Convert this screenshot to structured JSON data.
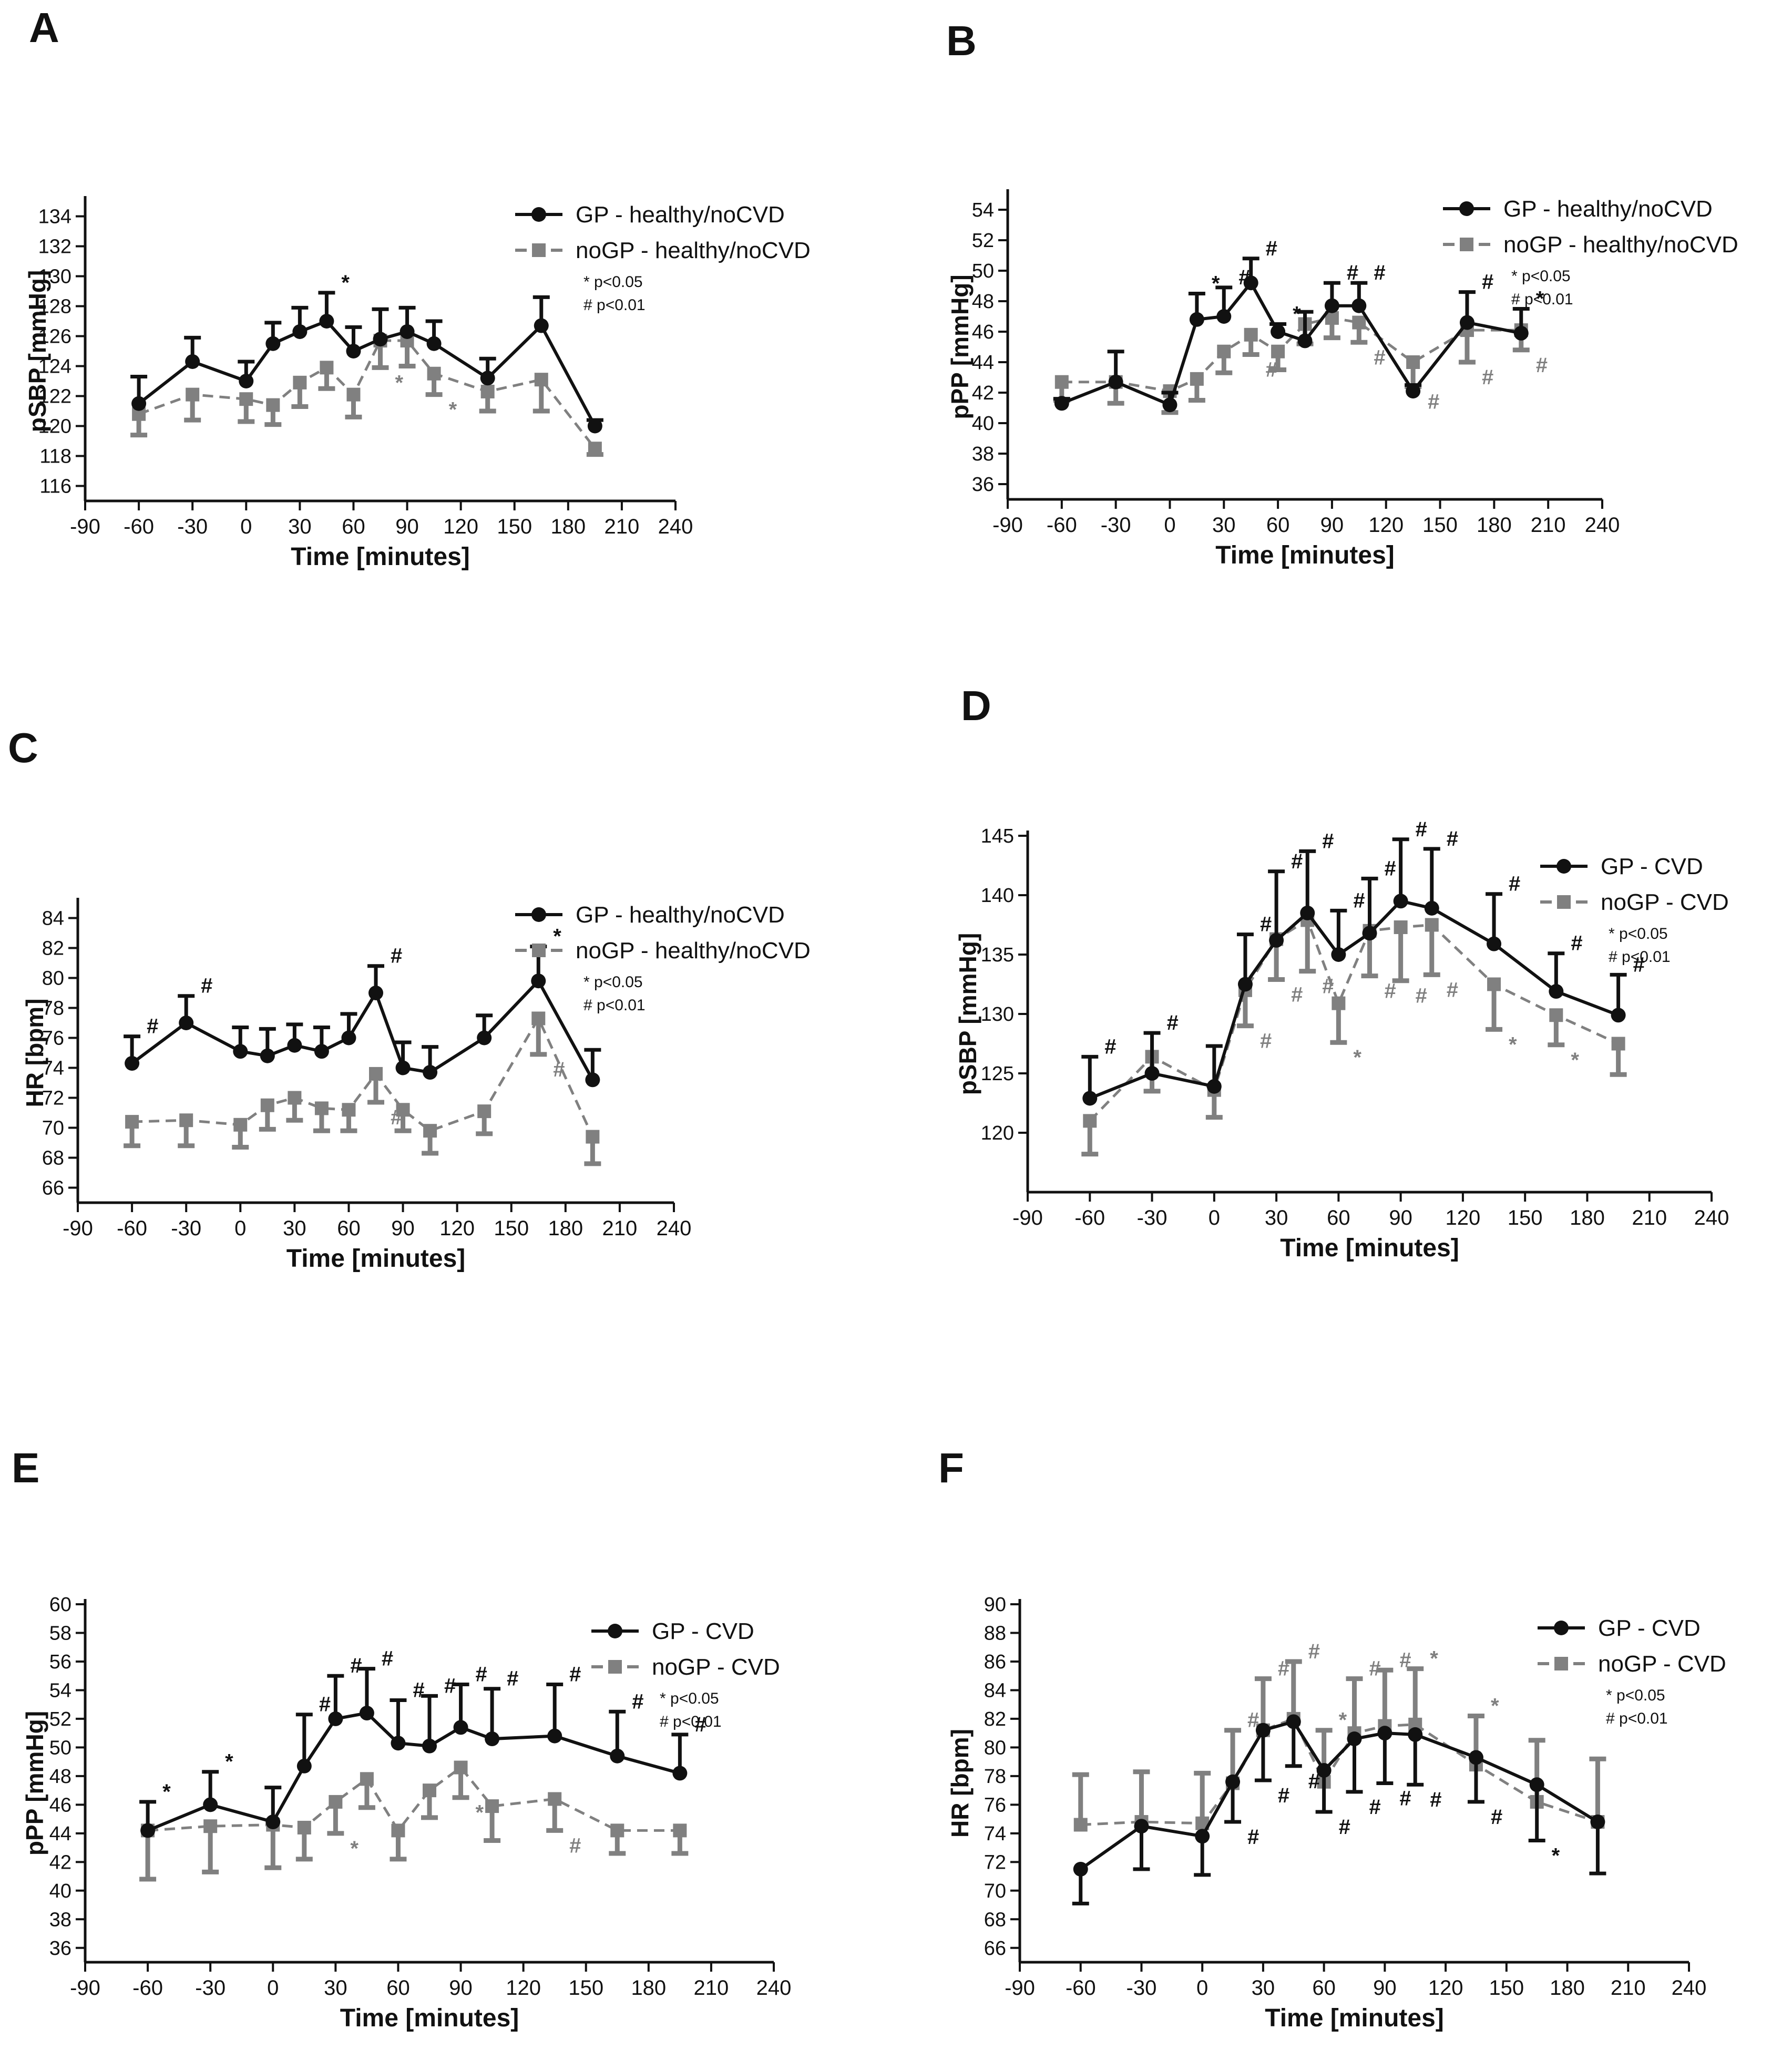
{
  "figure": {
    "series_colors": {
      "gp": "#111111",
      "nogp": "#808080"
    }
  },
  "chart_data": [
    {
      "panel": "A",
      "type": "line",
      "xlabel": "Time [minutes]",
      "ylabel": "pSBP [mmHg]",
      "xlim": [
        -90,
        240
      ],
      "xticks": [
        -90,
        -60,
        -30,
        0,
        30,
        60,
        90,
        120,
        150,
        180,
        210,
        240
      ],
      "ylim": [
        115,
        135
      ],
      "yticks": [
        116,
        118,
        120,
        122,
        124,
        126,
        128,
        130,
        132,
        134
      ],
      "legend": [
        "GP - healthy/noCVD",
        "noGP - healthy/noCVD"
      ],
      "legend_position": "top-right",
      "sig_note": [
        "* p<0.05",
        "# p<0.01"
      ],
      "x": [
        -60,
        -30,
        0,
        15,
        30,
        45,
        60,
        75,
        90,
        105,
        135,
        165,
        195
      ],
      "series": [
        {
          "name": "GP - healthy/noCVD",
          "values": [
            121.5,
            124.3,
            123.0,
            125.5,
            126.3,
            127.0,
            125.0,
            125.8,
            126.3,
            125.5,
            123.2,
            126.7,
            120.0
          ],
          "err": [
            1.8,
            1.6,
            1.3,
            1.4,
            1.6,
            1.9,
            1.6,
            2.0,
            1.6,
            1.5,
            1.3,
            1.9,
            0.4
          ],
          "err_dir": "up",
          "marks": [
            {
              "x": 45,
              "label": "*"
            }
          ]
        },
        {
          "name": "noGP - healthy/noCVD",
          "values": [
            120.8,
            122.1,
            121.8,
            121.4,
            122.9,
            123.9,
            122.1,
            125.7,
            125.7,
            123.5,
            122.3,
            123.1,
            118.5
          ],
          "err": [
            1.4,
            1.7,
            1.5,
            1.3,
            1.6,
            1.4,
            1.5,
            1.8,
            1.7,
            1.4,
            1.3,
            2.1,
            0.4
          ],
          "err_dir": "down",
          "marks": [
            {
              "x": 75,
              "label": "*"
            },
            {
              "x": 105,
              "label": "*"
            }
          ]
        }
      ]
    },
    {
      "panel": "B",
      "type": "line",
      "xlabel": "Time [minutes]",
      "ylabel": "pPP [mmHg]",
      "xlim": [
        -90,
        240
      ],
      "xticks": [
        -90,
        -60,
        -30,
        0,
        30,
        60,
        90,
        120,
        150,
        180,
        210,
        240
      ],
      "ylim": [
        35,
        55
      ],
      "yticks": [
        36,
        38,
        40,
        42,
        44,
        46,
        48,
        50,
        52,
        54
      ],
      "legend": [
        "GP - healthy/noCVD",
        "noGP - healthy/noCVD"
      ],
      "legend_position": "top-right",
      "sig_note": [
        "* p<0.05",
        "# p<0.01"
      ],
      "x": [
        -60,
        -30,
        0,
        15,
        30,
        45,
        60,
        75,
        90,
        105,
        135,
        165,
        195
      ],
      "series": [
        {
          "name": "GP - healthy/noCVD",
          "values": [
            41.3,
            42.7,
            41.2,
            46.8,
            47.0,
            49.2,
            46.0,
            45.4,
            47.7,
            47.7,
            42.1,
            46.6,
            45.9
          ],
          "err": [
            0.3,
            2.0,
            0.8,
            1.7,
            1.9,
            1.6,
            0.5,
            1.9,
            1.5,
            1.5,
            0.4,
            2.0,
            1.6
          ],
          "err_dir": "up",
          "marks": [
            {
              "x": 15,
              "label": "*"
            },
            {
              "x": 30,
              "label": "#"
            },
            {
              "x": 45,
              "label": "#"
            },
            {
              "x": 60,
              "label": "*"
            },
            {
              "x": 90,
              "label": "#"
            },
            {
              "x": 105,
              "label": "#"
            },
            {
              "x": 165,
              "label": "#"
            },
            {
              "x": 195,
              "label": "*"
            }
          ]
        },
        {
          "name": "noGP - healthy/noCVD",
          "values": [
            42.7,
            42.7,
            42.1,
            42.9,
            44.7,
            45.8,
            44.7,
            46.5,
            46.9,
            46.6,
            44.0,
            46.1,
            46.1
          ],
          "err": [
            1.2,
            1.4,
            1.4,
            1.4,
            1.4,
            1.3,
            1.2,
            1.3,
            1.3,
            1.3,
            1.6,
            2.1,
            1.3
          ],
          "err_dir": "down",
          "marks": [
            {
              "x": 45,
              "label": "#"
            },
            {
              "x": 105,
              "label": "#"
            },
            {
              "x": 135,
              "label": "#"
            },
            {
              "x": 165,
              "label": "#"
            },
            {
              "x": 195,
              "label": "#"
            }
          ]
        }
      ]
    },
    {
      "panel": "C",
      "type": "line",
      "xlabel": "Time [minutes]",
      "ylabel": "HR  [bpm]",
      "xlim": [
        -90,
        240
      ],
      "xticks": [
        -90,
        -60,
        -30,
        0,
        30,
        60,
        90,
        120,
        150,
        180,
        210,
        240
      ],
      "ylim": [
        65,
        85
      ],
      "yticks": [
        66,
        68,
        70,
        72,
        74,
        76,
        78,
        80,
        82,
        84
      ],
      "legend": [
        "GP - healthy/noCVD",
        "noGP - healthy/noCVD"
      ],
      "legend_position": "top-right",
      "sig_note": [
        "* p<0.05",
        "# p<0.01"
      ],
      "x": [
        -60,
        -30,
        0,
        15,
        30,
        45,
        60,
        75,
        90,
        105,
        135,
        165,
        195
      ],
      "series": [
        {
          "name": "GP - healthy/noCVD",
          "values": [
            74.3,
            77.0,
            75.1,
            74.8,
            75.5,
            75.1,
            76.0,
            79.0,
            74.0,
            73.7,
            76.0,
            79.8,
            73.2
          ],
          "err": [
            1.8,
            1.8,
            1.6,
            1.8,
            1.4,
            1.6,
            1.6,
            1.8,
            1.7,
            1.7,
            1.5,
            2.3,
            2.0
          ],
          "err_dir": "up",
          "marks": [
            {
              "x": -60,
              "label": "#"
            },
            {
              "x": -30,
              "label": "#"
            },
            {
              "x": 75,
              "label": "#"
            },
            {
              "x": 165,
              "label": "*"
            }
          ]
        },
        {
          "name": "noGP - healthy/noCVD",
          "values": [
            70.4,
            70.5,
            70.2,
            71.5,
            72.0,
            71.3,
            71.2,
            73.6,
            71.2,
            69.8,
            71.1,
            77.3,
            69.4
          ],
          "err": [
            1.6,
            1.7,
            1.5,
            1.6,
            1.5,
            1.5,
            1.4,
            1.9,
            1.4,
            1.5,
            1.5,
            2.4,
            1.8
          ],
          "err_dir": "down",
          "marks": [
            {
              "x": 75,
              "label": "#"
            },
            {
              "x": 165,
              "label": "#"
            }
          ]
        }
      ]
    },
    {
      "panel": "D",
      "type": "line",
      "xlabel": "Time [minutes]",
      "ylabel": "pSBP [mmHg]",
      "xlim": [
        -90,
        240
      ],
      "xticks": [
        -90,
        -60,
        -30,
        0,
        30,
        60,
        90,
        120,
        150,
        180,
        210,
        240
      ],
      "ylim": [
        115,
        145
      ],
      "yticks": [
        120,
        125,
        130,
        135,
        140,
        145
      ],
      "legend": [
        "GP - CVD",
        "noGP - CVD"
      ],
      "legend_position": "top-right",
      "sig_note": [
        "* p<0.05",
        "# p<0.01"
      ],
      "x": [
        -60,
        -30,
        0,
        15,
        30,
        45,
        60,
        75,
        90,
        105,
        135,
        165,
        195
      ],
      "series": [
        {
          "name": "GP - CVD",
          "values": [
            122.9,
            125.0,
            123.9,
            132.5,
            136.2,
            138.5,
            135.0,
            136.8,
            139.5,
            138.9,
            135.9,
            131.9,
            129.9
          ],
          "err": [
            3.5,
            3.4,
            3.4,
            4.2,
            5.8,
            5.2,
            3.7,
            4.6,
            5.2,
            5.0,
            4.2,
            3.2,
            3.4
          ],
          "err_dir": "up",
          "marks": [
            {
              "x": -60,
              "label": "#"
            },
            {
              "x": -30,
              "label": "#"
            },
            {
              "x": 15,
              "label": "#"
            },
            {
              "x": 30,
              "label": "#"
            },
            {
              "x": 45,
              "label": "#"
            },
            {
              "x": 60,
              "label": "#"
            },
            {
              "x": 75,
              "label": "#"
            },
            {
              "x": 90,
              "label": "#"
            },
            {
              "x": 105,
              "label": "#"
            },
            {
              "x": 135,
              "label": "#"
            },
            {
              "x": 165,
              "label": "#"
            },
            {
              "x": 195,
              "label": "#"
            }
          ]
        },
        {
          "name": "noGP - CVD",
          "values": [
            121.0,
            126.4,
            123.6,
            132.0,
            136.3,
            137.9,
            130.9,
            137.0,
            137.3,
            137.5,
            132.5,
            129.9,
            127.5
          ],
          "err": [
            2.8,
            2.9,
            2.3,
            3.0,
            3.4,
            4.3,
            3.3,
            3.8,
            4.5,
            4.2,
            3.8,
            2.5,
            2.6
          ],
          "err_dir": "down",
          "marks": [
            {
              "x": 15,
              "label": "#"
            },
            {
              "x": 30,
              "label": "#"
            },
            {
              "x": 45,
              "label": "#"
            },
            {
              "x": 60,
              "label": "*"
            },
            {
              "x": 75,
              "label": "#"
            },
            {
              "x": 90,
              "label": "#"
            },
            {
              "x": 105,
              "label": "#"
            },
            {
              "x": 135,
              "label": "*"
            },
            {
              "x": 165,
              "label": "*"
            }
          ]
        }
      ]
    },
    {
      "panel": "E",
      "type": "line",
      "xlabel": "Time [minutes]",
      "ylabel": "pPP [mmHg]",
      "xlim": [
        -90,
        240
      ],
      "xticks": [
        -90,
        -60,
        -30,
        0,
        30,
        60,
        90,
        120,
        150,
        180,
        210,
        240
      ],
      "ylim": [
        35,
        60
      ],
      "yticks": [
        36,
        38,
        40,
        42,
        44,
        46,
        48,
        50,
        52,
        54,
        56,
        58,
        60
      ],
      "legend": [
        "GP - CVD",
        "noGP - CVD"
      ],
      "legend_position": "top-right",
      "sig_note": [
        "* p<0.05",
        "# p<0.01"
      ],
      "x": [
        -60,
        -30,
        0,
        15,
        30,
        45,
        60,
        75,
        90,
        105,
        135,
        165,
        195
      ],
      "series": [
        {
          "name": "GP - CVD",
          "values": [
            44.2,
            46.0,
            44.8,
            48.7,
            52.0,
            52.4,
            50.3,
            50.1,
            51.4,
            50.6,
            50.8,
            49.4,
            48.2
          ],
          "err": [
            2.0,
            2.3,
            2.4,
            3.6,
            3.0,
            3.1,
            3.0,
            3.5,
            3.0,
            3.5,
            3.6,
            3.1,
            2.7
          ],
          "err_dir": "up",
          "marks": [
            {
              "x": -60,
              "label": "*"
            },
            {
              "x": -30,
              "label": "*"
            },
            {
              "x": 15,
              "label": "#"
            },
            {
              "x": 30,
              "label": "#"
            },
            {
              "x": 45,
              "label": "#"
            },
            {
              "x": 60,
              "label": "#"
            },
            {
              "x": 75,
              "label": "#"
            },
            {
              "x": 90,
              "label": "#"
            },
            {
              "x": 105,
              "label": "#"
            },
            {
              "x": 135,
              "label": "#"
            },
            {
              "x": 165,
              "label": "#"
            },
            {
              "x": 195,
              "label": "#"
            }
          ]
        },
        {
          "name": "noGP - CVD",
          "values": [
            44.2,
            44.5,
            44.6,
            44.4,
            46.2,
            47.8,
            44.2,
            47.0,
            48.6,
            45.9,
            46.4,
            44.2,
            44.2
          ],
          "err": [
            3.4,
            3.2,
            3.0,
            2.2,
            2.2,
            2.0,
            2.0,
            1.9,
            2.1,
            2.4,
            2.2,
            1.6,
            1.6
          ],
          "err_dir": "down",
          "marks": [
            {
              "x": 30,
              "label": "*"
            },
            {
              "x": 90,
              "label": "*"
            },
            {
              "x": 135,
              "label": "#"
            }
          ]
        }
      ]
    },
    {
      "panel": "F",
      "type": "line",
      "xlabel": "Time [minutes]",
      "ylabel": "HR  [bpm]",
      "xlim": [
        -90,
        240
      ],
      "xticks": [
        -90,
        -60,
        -30,
        0,
        30,
        60,
        90,
        120,
        150,
        180,
        210,
        240
      ],
      "ylim": [
        65,
        90
      ],
      "yticks": [
        66,
        68,
        70,
        72,
        74,
        76,
        78,
        80,
        82,
        84,
        86,
        88,
        90
      ],
      "legend": [
        "GP - CVD",
        "noGP - CVD"
      ],
      "legend_position": "top-right",
      "sig_note": [
        "* p<0.05",
        "# p<0.01"
      ],
      "x": [
        -60,
        -30,
        0,
        15,
        30,
        45,
        60,
        75,
        90,
        105,
        135,
        165,
        195
      ],
      "series": [
        {
          "name": "GP - CVD",
          "values": [
            71.5,
            74.5,
            73.8,
            77.6,
            81.2,
            81.8,
            78.4,
            80.6,
            81.0,
            80.9,
            79.3,
            77.4,
            74.8
          ],
          "err": [
            2.4,
            3.0,
            2.7,
            2.8,
            3.5,
            3.1,
            2.9,
            3.7,
            3.5,
            3.5,
            3.1,
            3.9,
            3.6
          ],
          "err_dir": "down",
          "marks": [
            {
              "x": 15,
              "label": "#"
            },
            {
              "x": 30,
              "label": "#"
            },
            {
              "x": 45,
              "label": "#"
            },
            {
              "x": 60,
              "label": "#"
            },
            {
              "x": 75,
              "label": "#"
            },
            {
              "x": 90,
              "label": "#"
            },
            {
              "x": 105,
              "label": "#"
            },
            {
              "x": 135,
              "label": "#"
            },
            {
              "x": 165,
              "label": "*"
            }
          ]
        },
        {
          "name": "noGP - CVD",
          "values": [
            74.6,
            74.8,
            74.7,
            77.5,
            81.2,
            82.0,
            77.6,
            81.0,
            81.5,
            81.6,
            78.8,
            76.2,
            74.8
          ],
          "err": [
            3.5,
            3.5,
            3.5,
            3.7,
            3.6,
            4.0,
            3.6,
            3.8,
            3.9,
            3.9,
            3.4,
            4.3,
            4.4
          ],
          "err_dir": "up",
          "marks": [
            {
              "x": 15,
              "label": "#"
            },
            {
              "x": 30,
              "label": "#"
            },
            {
              "x": 45,
              "label": "#"
            },
            {
              "x": 60,
              "label": "*"
            },
            {
              "x": 75,
              "label": "#"
            },
            {
              "x": 90,
              "label": "#"
            },
            {
              "x": 105,
              "label": "*"
            },
            {
              "x": 135,
              "label": "*"
            }
          ]
        }
      ]
    }
  ]
}
